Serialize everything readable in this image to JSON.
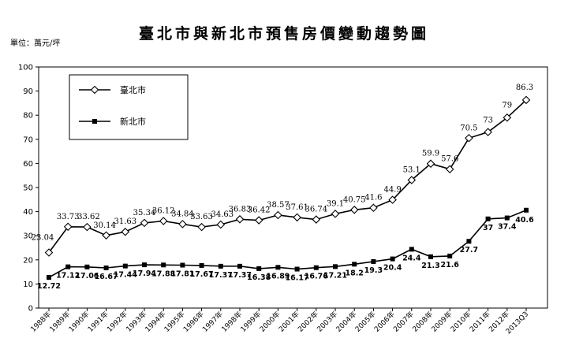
{
  "chart_data": {
    "type": "line",
    "title": "臺北市與新北市預售房價變動趨勢圖",
    "unit_label": "單位：萬元/坪",
    "ylim": [
      0,
      100
    ],
    "y_ticks": [
      "0",
      "10",
      "20",
      "30",
      "40",
      "50",
      "60",
      "70",
      "80",
      "90",
      "100"
    ],
    "categories": [
      "1988年",
      "1989年",
      "1990年",
      "1991年",
      "1992年",
      "1993年",
      "1994年",
      "1995年",
      "1996年",
      "1997年",
      "1998年",
      "1999年",
      "2000年",
      "2001年",
      "2002年",
      "2003年",
      "2004年",
      "2005年",
      "2006年",
      "2007年",
      "2008年",
      "2009年",
      "2010年",
      "2011年",
      "2012年",
      "2013Q3"
    ],
    "legend_position": "top-left",
    "grid": false,
    "series": [
      {
        "name": "臺北市",
        "marker": "diamond",
        "values": [
          23.04,
          33.73,
          33.62,
          30.14,
          31.63,
          35.34,
          36.12,
          34.84,
          33.63,
          34.63,
          36.83,
          36.42,
          38.57,
          37.61,
          36.74,
          39.1,
          40.75,
          41.6,
          44.9,
          53.1,
          59.9,
          57.6,
          70.5,
          73,
          79,
          86.3
        ],
        "labels": [
          "23.04",
          "33.73",
          "33.62",
          "30.14",
          "31.63",
          "35.34",
          "36.12",
          "34.84",
          "33.63",
          "34.63",
          "36.83",
          "36.42",
          "38.57",
          "37.61",
          "36.74",
          "39.1",
          "40.75",
          "41.6",
          "44.9",
          "53.1",
          "59.9",
          "57.6",
          "70.5",
          "73",
          "79",
          "86.3"
        ]
      },
      {
        "name": "新北市",
        "marker": "square",
        "values": [
          12.72,
          17.12,
          17.06,
          16.67,
          17.44,
          17.94,
          17.88,
          17.81,
          17.67,
          17.37,
          17.37,
          16.38,
          16.89,
          16.17,
          16.76,
          17.21,
          18.2,
          19.3,
          20.4,
          24.4,
          21.3,
          21.6,
          27.7,
          37,
          37.4,
          40.6
        ],
        "labels": [
          "12.72",
          "17.12",
          "17.06",
          "16.67",
          "17.44",
          "17.94",
          "17.88",
          "17.81",
          "17.67",
          "17.37",
          "17.37",
          "16.38",
          "16.89",
          "16.17",
          "16.76",
          "17.21",
          "18.2",
          "19.3",
          "20.4",
          "24.4",
          "21.3",
          "21.6",
          "27.7",
          "37",
          "37.4",
          "40.6"
        ]
      }
    ]
  }
}
